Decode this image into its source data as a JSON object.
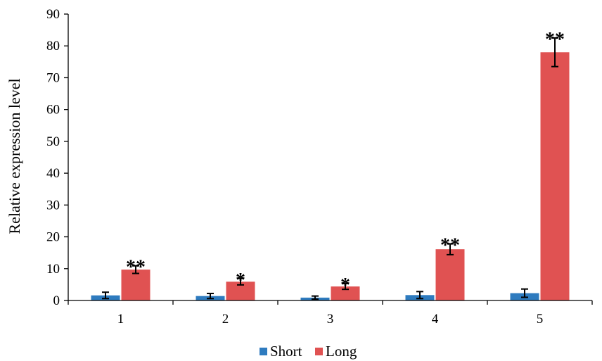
{
  "chart_data": {
    "type": "bar",
    "title": "",
    "xlabel": "",
    "ylabel": "Relative expression level",
    "ylim": [
      0,
      90
    ],
    "yticks": [
      0,
      10,
      20,
      30,
      40,
      50,
      60,
      70,
      80,
      90
    ],
    "categories": [
      "1",
      "2",
      "3",
      "4",
      "5"
    ],
    "grid": false,
    "legend": "bottom",
    "series": [
      {
        "name": "Short",
        "color": "#2e7bbf",
        "values": [
          1.6,
          1.4,
          0.9,
          1.7,
          2.3
        ],
        "errors": [
          1.0,
          0.8,
          0.5,
          1.1,
          1.3
        ],
        "significance": [
          "",
          "",
          "",
          "",
          ""
        ]
      },
      {
        "name": "Long",
        "color": "#e05252",
        "values": [
          9.7,
          5.9,
          4.4,
          16.1,
          78.0
        ],
        "errors": [
          1.2,
          1.0,
          0.9,
          1.7,
          4.5
        ],
        "significance": [
          "**",
          "*",
          "*",
          "**",
          "**"
        ]
      }
    ]
  }
}
